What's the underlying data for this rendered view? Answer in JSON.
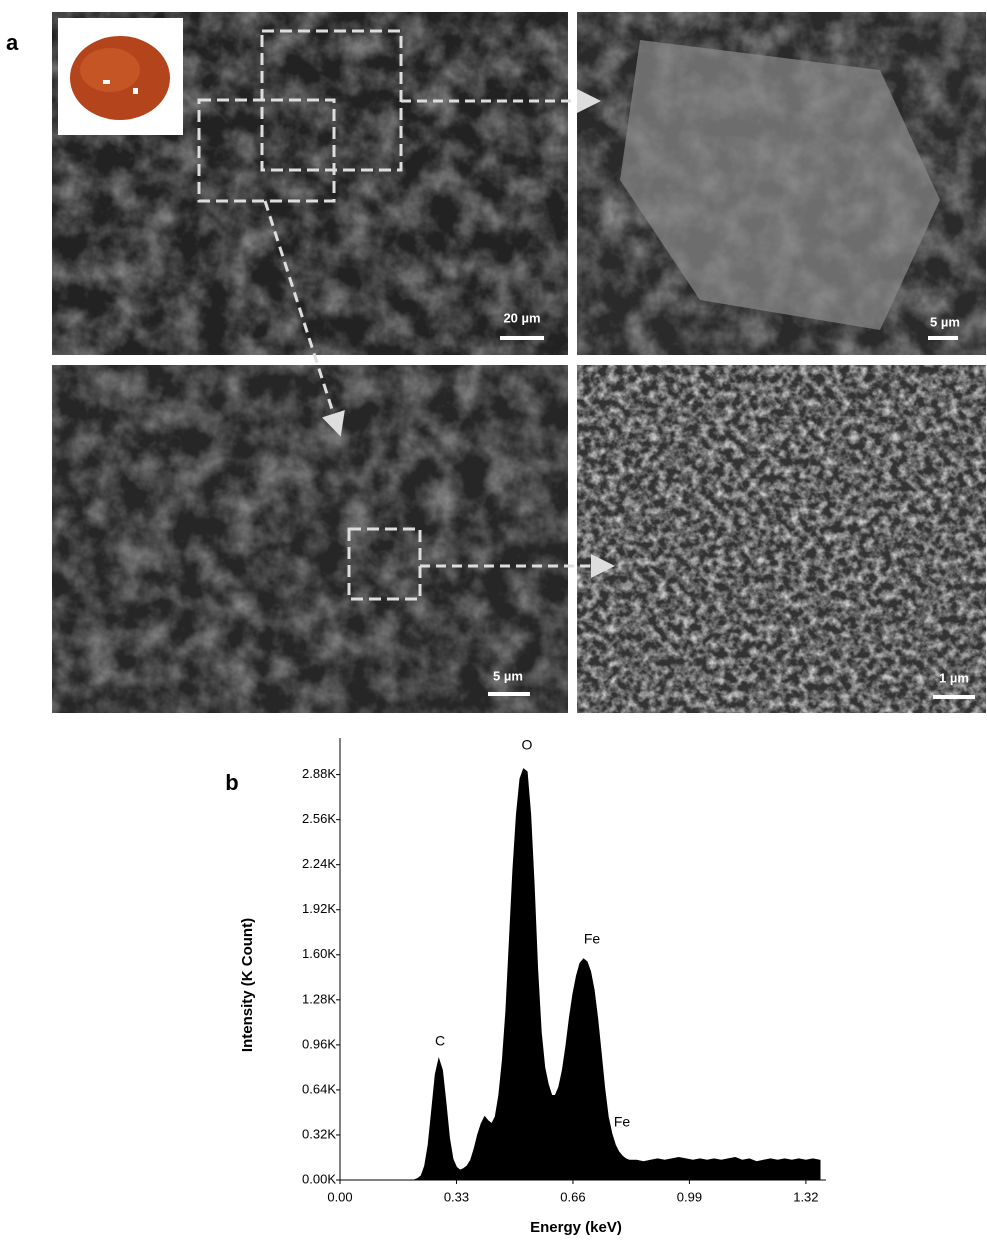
{
  "figure": {
    "panel_a": {
      "label": "a",
      "scale_bars": [
        "20 µm",
        "5 µm",
        "5 µm",
        "1 µm"
      ]
    },
    "panel_b": {
      "label": "b"
    }
  },
  "chart_data": {
    "type": "area",
    "x_label": "Energy (keV)",
    "y_label": "Intensity (K Count)",
    "annotations": [
      "O",
      "Fe",
      "C",
      "Fe"
    ],
    "color": "#000000",
    "x": [
      0.2,
      0.21,
      0.22,
      0.23,
      0.24,
      0.25,
      0.26,
      0.27,
      0.28,
      0.29,
      0.3,
      0.31,
      0.32,
      0.33,
      0.34,
      0.35,
      0.36,
      0.37,
      0.38,
      0.39,
      0.4,
      0.41,
      0.42,
      0.43,
      0.44,
      0.45,
      0.46,
      0.47,
      0.48,
      0.49,
      0.5,
      0.51,
      0.52,
      0.53,
      0.54,
      0.55,
      0.56,
      0.57,
      0.58,
      0.59,
      0.6,
      0.61,
      0.62,
      0.63,
      0.64,
      0.65,
      0.66,
      0.67,
      0.68,
      0.69,
      0.7,
      0.71,
      0.72,
      0.73,
      0.74,
      0.75,
      0.76,
      0.77,
      0.78,
      0.79,
      0.8,
      0.81,
      0.82,
      0.84,
      0.86,
      0.88,
      0.9,
      0.92,
      0.94,
      0.96,
      0.98,
      1.0,
      1.02,
      1.04,
      1.06,
      1.08,
      1.1,
      1.12,
      1.14,
      1.16,
      1.18,
      1.2,
      1.22,
      1.24,
      1.26,
      1.28,
      1.3,
      1.32,
      1.34,
      1.36
    ],
    "values": [
      0,
      0,
      0.01,
      0.03,
      0.1,
      0.25,
      0.5,
      0.75,
      0.86,
      0.78,
      0.55,
      0.3,
      0.15,
      0.09,
      0.07,
      0.08,
      0.1,
      0.14,
      0.22,
      0.32,
      0.4,
      0.45,
      0.42,
      0.4,
      0.45,
      0.6,
      0.85,
      1.2,
      1.7,
      2.2,
      2.6,
      2.85,
      2.92,
      2.9,
      2.6,
      2.1,
      1.5,
      1.05,
      0.8,
      0.68,
      0.6,
      0.6,
      0.66,
      0.78,
      0.95,
      1.15,
      1.32,
      1.45,
      1.54,
      1.57,
      1.55,
      1.48,
      1.35,
      1.15,
      0.9,
      0.65,
      0.45,
      0.33,
      0.25,
      0.2,
      0.17,
      0.15,
      0.14,
      0.14,
      0.13,
      0.14,
      0.15,
      0.14,
      0.15,
      0.16,
      0.15,
      0.14,
      0.15,
      0.14,
      0.15,
      0.14,
      0.15,
      0.16,
      0.14,
      0.15,
      0.13,
      0.14,
      0.15,
      0.14,
      0.15,
      0.14,
      0.15,
      0.14,
      0.15,
      0.14
    ],
    "xlim": [
      0,
      1.377
    ],
    "ylim": [
      0,
      3.14
    ],
    "xticks": [
      {
        "value": 0,
        "label": "0.00"
      },
      0.33,
      0.66,
      0.99,
      1.32
    ],
    "yticks": [
      {
        "value": 0,
        "label": "0.00K"
      },
      {
        "value": 0.32,
        "label": "0.32K"
      },
      {
        "value": 0.64,
        "label": "0.64K"
      },
      {
        "value": 0.96,
        "label": "0.96K"
      },
      {
        "value": 1.28,
        "label": "1.28K"
      },
      {
        "value": 1.6,
        "label": "1.60K"
      },
      {
        "value": 1.92,
        "label": "1.92K"
      },
      {
        "value": 2.24,
        "label": "2.24K"
      },
      {
        "value": 2.56,
        "label": "2.56K"
      },
      {
        "value": 2.88,
        "label": "2.88K"
      }
    ]
  }
}
